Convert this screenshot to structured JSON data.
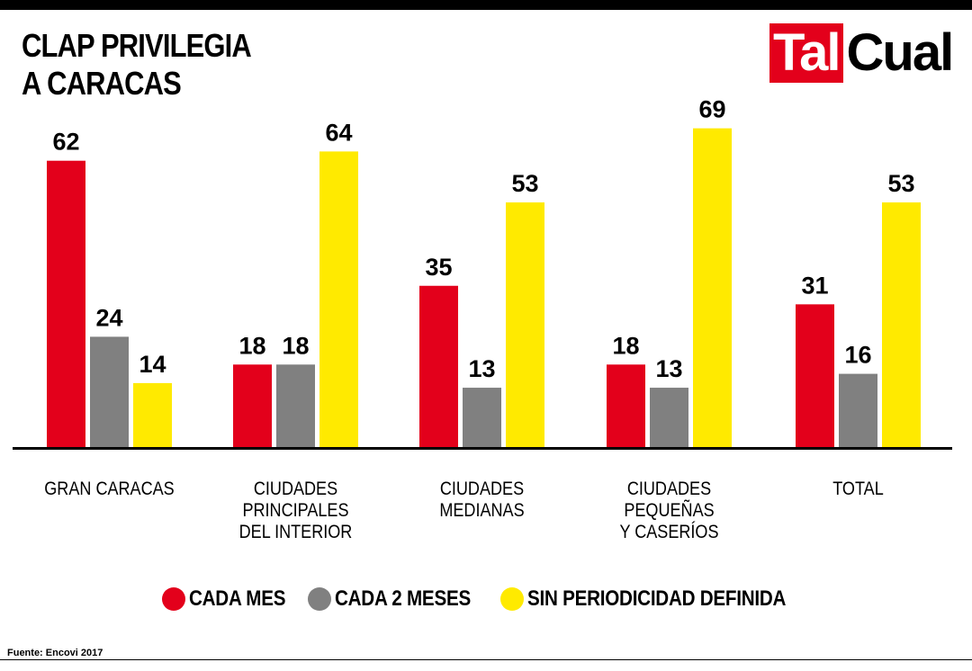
{
  "header": {
    "title_line1": "CLAP PRIVILEGIA",
    "title_line2": "A CARACAS",
    "logo_part1": "Tal",
    "logo_part2": "Cual",
    "logo_red": "#e3001b"
  },
  "chart_data": {
    "type": "bar",
    "title": "CLAP PRIVILEGIA A CARACAS",
    "categories": [
      [
        "GRAN CARACAS"
      ],
      [
        "CIUDADES",
        "PRINCIPALES",
        "DEL INTERIOR"
      ],
      [
        "CIUDADES",
        "MEDIANAS"
      ],
      [
        "CIUDADES",
        "PEQUEÑAS",
        "Y CASERÍOS"
      ],
      [
        "TOTAL"
      ]
    ],
    "series": [
      {
        "name": "CADA MES",
        "color": "#e3001b",
        "values": [
          62,
          18,
          35,
          18,
          31
        ]
      },
      {
        "name": "CADA 2 MESES",
        "color": "#808080",
        "values": [
          24,
          18,
          13,
          13,
          16
        ]
      },
      {
        "name": "SIN PERIODICIDAD DEFINIDA",
        "color": "#ffea00",
        "values": [
          14,
          64,
          53,
          69,
          53
        ]
      }
    ],
    "ylim": [
      0,
      70
    ],
    "grid": false,
    "legend_position": "bottom"
  },
  "footer": {
    "source": "Fuente: Encovi 2017"
  }
}
